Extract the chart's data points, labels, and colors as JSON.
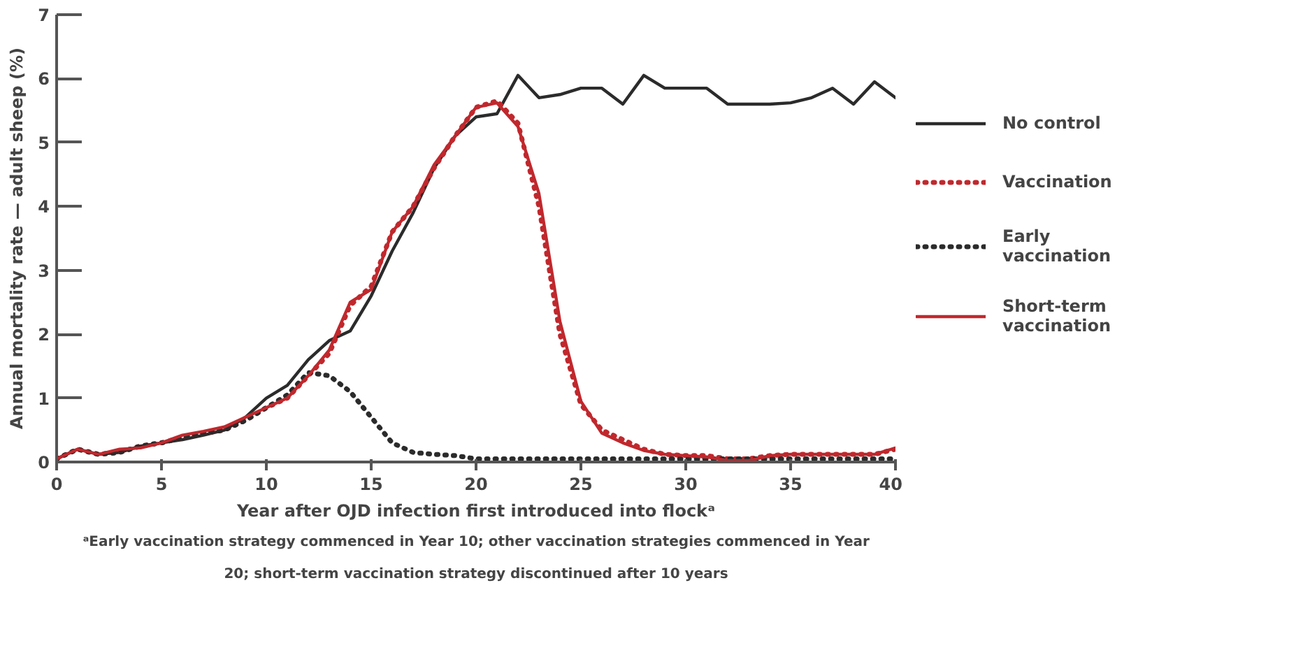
{
  "chart_data": {
    "type": "line",
    "xlabel": "Year after OJD infection first introduced into flockᵃ",
    "ylabel": "Annual mortality rate — adult sheep (%)",
    "annotations": [
      "ᵃEarly vaccination strategy commenced in Year 10; other vaccination strategies commenced in Year 20; short-term vaccination strategy discontinued after 10 years"
    ],
    "x": [
      0,
      1,
      2,
      3,
      4,
      5,
      6,
      7,
      8,
      9,
      10,
      11,
      12,
      13,
      14,
      15,
      16,
      17,
      18,
      19,
      20,
      21,
      22,
      23,
      24,
      25,
      26,
      27,
      28,
      29,
      30,
      31,
      32,
      33,
      34,
      35,
      36,
      37,
      38,
      39,
      40
    ],
    "xlim": [
      0,
      40
    ],
    "xticks": [
      0,
      5,
      10,
      15,
      20,
      25,
      30,
      35,
      40
    ],
    "ylim": [
      0,
      7
    ],
    "yticks": [
      0,
      1,
      2,
      3,
      4,
      5,
      6,
      7
    ],
    "grid": false,
    "legend": "right",
    "marker": "none",
    "series": [
      {
        "name": "No control",
        "color": "#2b2b2b",
        "line_style": "solid",
        "values": [
          0.05,
          0.2,
          0.12,
          0.15,
          0.25,
          0.3,
          0.35,
          0.42,
          0.5,
          0.7,
          1.0,
          1.2,
          1.6,
          1.9,
          2.05,
          2.6,
          3.3,
          3.9,
          4.6,
          5.1,
          5.4,
          5.45,
          6.05,
          5.7,
          5.75,
          5.85,
          5.85,
          5.6,
          6.05,
          5.85,
          5.85,
          5.85,
          5.6,
          5.6,
          5.6,
          5.62,
          5.7,
          5.85,
          5.6,
          5.95,
          5.7
        ]
      },
      {
        "name": "Vaccination",
        "color": "#c0282d",
        "line_style": "dotted",
        "values": [
          0.05,
          0.2,
          0.12,
          0.15,
          0.25,
          0.3,
          0.38,
          0.45,
          0.5,
          0.65,
          0.85,
          1.0,
          1.35,
          1.7,
          2.45,
          2.75,
          3.6,
          4.0,
          4.6,
          5.1,
          5.55,
          5.65,
          5.3,
          4.0,
          2.0,
          0.9,
          0.5,
          0.35,
          0.2,
          0.12,
          0.1,
          0.1,
          0.05,
          0.05,
          0.1,
          0.12,
          0.12,
          0.12,
          0.12,
          0.12,
          0.2
        ]
      },
      {
        "name": "Early vaccination",
        "color": "#2b2b2b",
        "line_style": "dotted",
        "values": [
          0.05,
          0.2,
          0.12,
          0.15,
          0.25,
          0.3,
          0.38,
          0.45,
          0.5,
          0.65,
          0.85,
          1.05,
          1.4,
          1.35,
          1.1,
          0.7,
          0.3,
          0.15,
          0.12,
          0.1,
          0.05,
          0.05,
          0.05,
          0.05,
          0.05,
          0.05,
          0.05,
          0.05,
          0.05,
          0.05,
          0.05,
          0.05,
          0.05,
          0.05,
          0.05,
          0.05,
          0.05,
          0.05,
          0.05,
          0.05,
          0.05
        ]
      },
      {
        "name": "Short-term vaccination",
        "color": "#c0282d",
        "line_style": "solid",
        "values": [
          0.05,
          0.2,
          0.12,
          0.2,
          0.22,
          0.3,
          0.42,
          0.48,
          0.55,
          0.7,
          0.85,
          1.0,
          1.35,
          1.75,
          2.5,
          2.7,
          3.6,
          4.0,
          4.65,
          5.1,
          5.55,
          5.62,
          5.25,
          4.2,
          2.2,
          0.95,
          0.45,
          0.3,
          0.18,
          0.12,
          0.1,
          0.08,
          0.02,
          0.02,
          0.1,
          0.12,
          0.12,
          0.12,
          0.12,
          0.12,
          0.22
        ]
      }
    ]
  }
}
